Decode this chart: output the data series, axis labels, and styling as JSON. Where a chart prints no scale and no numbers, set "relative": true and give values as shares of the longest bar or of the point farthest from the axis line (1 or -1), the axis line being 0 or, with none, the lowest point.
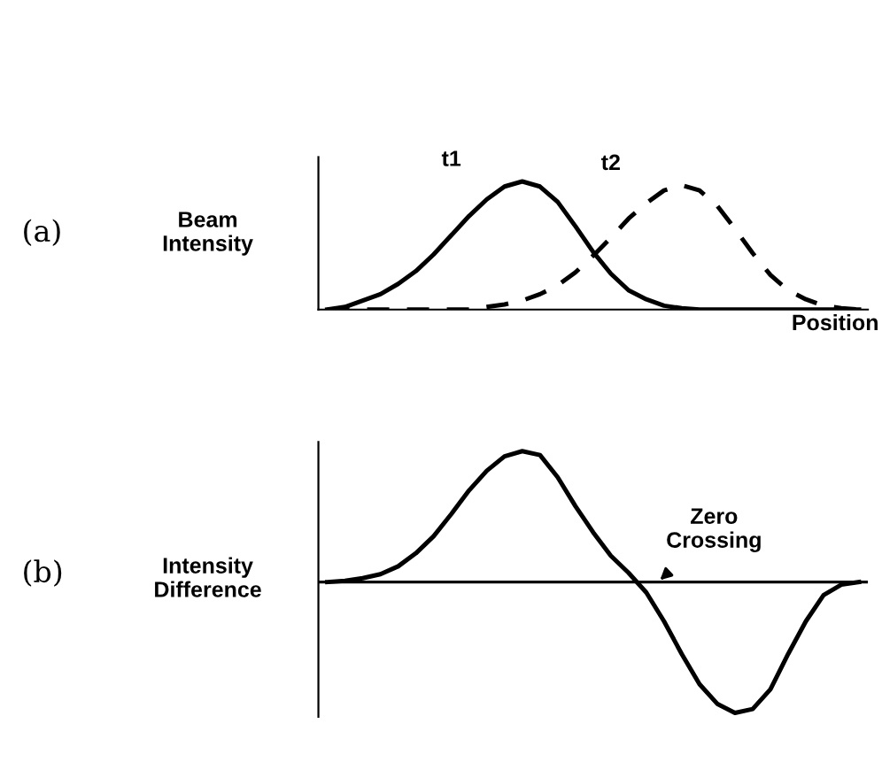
{
  "chart_data": [
    {
      "type": "line",
      "relative": true,
      "ylabel": "Beam\nIntensity",
      "xlabel": "Position",
      "annotations": [
        "(a)"
      ],
      "categories": [
        null,
        null,
        null,
        null,
        null,
        null,
        null,
        null,
        null,
        null,
        null,
        null,
        null,
        null,
        null,
        null,
        null,
        null,
        null,
        null,
        null,
        null,
        null,
        null,
        null,
        null,
        null,
        null,
        null,
        null,
        null
      ],
      "series": [
        {
          "name": "t1",
          "color": "#000000",
          "line_style": "solid",
          "values": [
            0,
            0.02,
            0.07,
            0.12,
            0.2,
            0.3,
            0.43,
            0.58,
            0.73,
            0.86,
            0.96,
            1,
            0.96,
            0.84,
            0.65,
            0.45,
            0.28,
            0.15,
            0.08,
            0.03,
            0.01,
            0,
            0,
            0,
            0,
            0,
            0,
            0,
            0,
            0,
            0
          ]
        },
        {
          "name": "t2",
          "color": "#000000",
          "line_style": "dashed",
          "values": [
            0,
            0,
            0,
            0,
            0,
            0,
            0,
            0,
            0,
            0.02,
            0.04,
            0.07,
            0.12,
            0.19,
            0.29,
            0.42,
            0.56,
            0.71,
            0.83,
            0.93,
            0.97,
            0.93,
            0.81,
            0.63,
            0.44,
            0.27,
            0.15,
            0.08,
            0.03,
            0.01,
            0
          ]
        }
      ]
    },
    {
      "type": "line",
      "relative": true,
      "ylabel": "Intensity\nDifference",
      "annotations": [
        "(b)",
        "Zero\nCrossing"
      ],
      "categories": [
        null,
        null,
        null,
        null,
        null,
        null,
        null,
        null,
        null,
        null,
        null,
        null,
        null,
        null,
        null,
        null,
        null,
        null,
        null,
        null,
        null,
        null,
        null,
        null,
        null,
        null,
        null,
        null,
        null,
        null,
        null
      ],
      "series": [
        {
          "color": "#000000",
          "line_style": "solid",
          "values": [
            0,
            0.01,
            0.03,
            0.06,
            0.12,
            0.22,
            0.35,
            0.52,
            0.7,
            0.85,
            0.96,
            1,
            0.97,
            0.8,
            0.58,
            0.38,
            0.2,
            0.07,
            -0.08,
            -0.3,
            -0.55,
            -0.78,
            -0.93,
            -1,
            -0.97,
            -0.82,
            -0.55,
            -0.3,
            -0.1,
            -0.02,
            0
          ]
        }
      ]
    }
  ]
}
